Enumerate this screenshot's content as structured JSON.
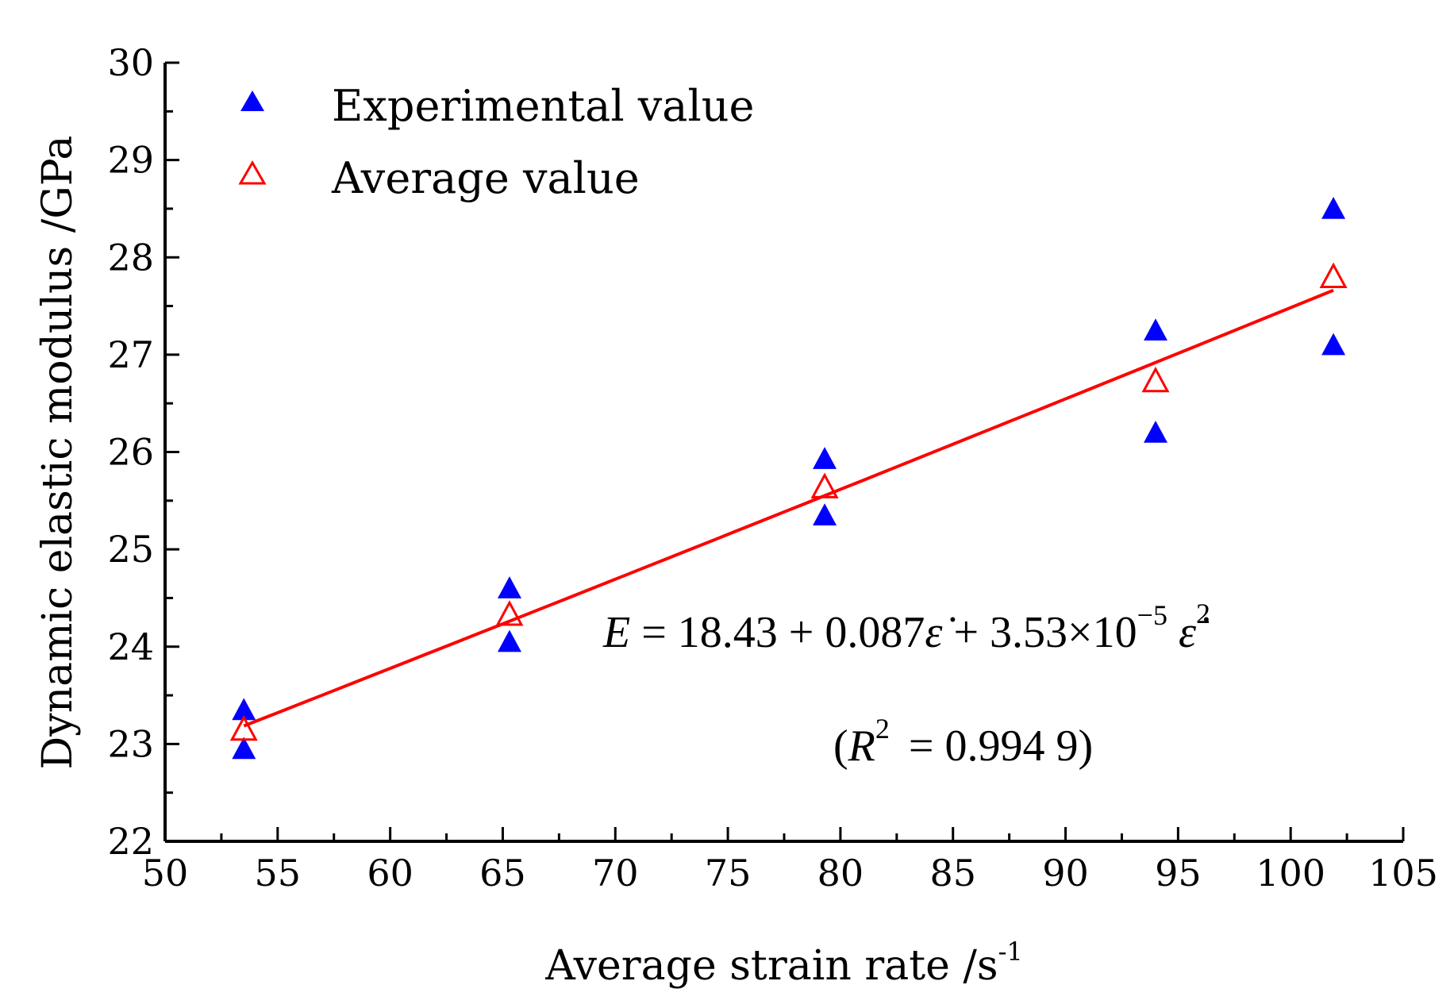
{
  "chart_data": {
    "type": "scatter",
    "xlabel": "Average strain rate /s",
    "xlabel_sup": "-1",
    "ylabel": "Dynamic elastic modulus /GPa",
    "xlim": [
      50,
      105
    ],
    "ylim": [
      22,
      30
    ],
    "x_ticks": [
      50,
      55,
      60,
      65,
      70,
      75,
      80,
      85,
      90,
      95,
      100,
      105
    ],
    "y_ticks": [
      22,
      23,
      24,
      25,
      26,
      27,
      28,
      29,
      30
    ],
    "grid": false,
    "legend_position": "top-left",
    "series": [
      {
        "name": "Experimental value",
        "marker": "filled-triangle",
        "color": "#0000ff",
        "points": [
          {
            "x": 53.5,
            "y": 23.35
          },
          {
            "x": 53.5,
            "y": 22.95
          },
          {
            "x": 65.3,
            "y": 24.6
          },
          {
            "x": 65.3,
            "y": 24.05
          },
          {
            "x": 79.3,
            "y": 25.93
          },
          {
            "x": 79.3,
            "y": 25.35
          },
          {
            "x": 94.0,
            "y": 27.25
          },
          {
            "x": 94.0,
            "y": 26.2
          },
          {
            "x": 101.9,
            "y": 28.5
          },
          {
            "x": 101.9,
            "y": 27.1
          }
        ]
      },
      {
        "name": "Average value",
        "marker": "hollow-triangle",
        "color": "#ff0000",
        "points": [
          {
            "x": 53.5,
            "y": 23.15
          },
          {
            "x": 65.3,
            "y": 24.33
          },
          {
            "x": 79.3,
            "y": 25.64
          },
          {
            "x": 94.0,
            "y": 26.73
          },
          {
            "x": 101.9,
            "y": 27.8
          }
        ]
      }
    ],
    "fit": {
      "color": "#ff0000",
      "intercept": 18.43,
      "linear": 0.087,
      "quadratic": 3.53e-05,
      "x_range": [
        53.5,
        101.9
      ]
    },
    "annotations": {
      "equation": {
        "lhs": "E",
        "eq": " = 18.43 + 0.087",
        "eps1": "ε̇",
        "mid": " + 3.53×10",
        "exp": "−5",
        "eps2": "ε̇",
        "sq": "2"
      },
      "r2": {
        "open": "(",
        "r": "R",
        "sup": "2",
        "value": " = 0.994 9)"
      }
    }
  }
}
